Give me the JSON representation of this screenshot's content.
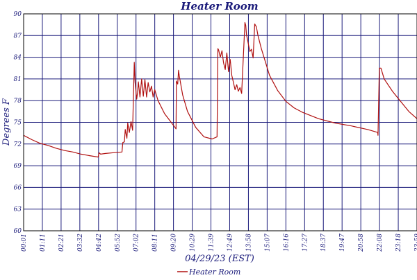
{
  "colors": {
    "frame": "#000000",
    "grid": "#1a1a7a",
    "text": "#1a1a7a",
    "series": "#b01010",
    "background": "#ffffff"
  },
  "chart_data": {
    "type": "line",
    "title": "Heater Room",
    "xlabel": "04/29/23 (EST)",
    "ylabel": "Degrees F",
    "ylim": [
      60,
      90
    ],
    "xlim": [
      0,
      24
    ],
    "grid": true,
    "legend_position": "bottom-center",
    "x_unit": "hours since 00:01",
    "x_tick_labels": [
      "00:01",
      "01:11",
      "02:21",
      "03:32",
      "04:42",
      "05:52",
      "07:02",
      "08:11",
      "09:20",
      "10:29",
      "11:39",
      "12:49",
      "13:58",
      "15:07",
      "16:16",
      "17:27",
      "18:37",
      "19:47",
      "20:58",
      "22:08",
      "23:18",
      "23:59"
    ],
    "y_tick_labels": [
      "60",
      "63",
      "66",
      "69",
      "72",
      "75",
      "78",
      "81",
      "84",
      "87",
      "90"
    ],
    "series": [
      {
        "name": "Heater Room",
        "x": [
          0.0,
          0.5,
          1.0,
          1.5,
          2.0,
          2.5,
          3.0,
          3.5,
          4.0,
          4.55,
          4.6,
          4.7,
          5.0,
          5.5,
          6.0,
          6.05,
          6.15,
          6.2,
          6.3,
          6.35,
          6.45,
          6.55,
          6.65,
          6.75,
          6.8,
          6.9,
          6.95,
          7.0,
          7.1,
          7.2,
          7.3,
          7.4,
          7.5,
          7.6,
          7.7,
          7.8,
          7.9,
          8.0,
          8.2,
          8.6,
          9.0,
          9.3,
          9.32,
          9.4,
          9.45,
          9.5,
          9.7,
          10.0,
          10.5,
          11.0,
          11.5,
          11.8,
          11.85,
          11.9,
          12.0,
          12.1,
          12.2,
          12.3,
          12.4,
          12.5,
          12.6,
          12.7,
          12.8,
          12.9,
          13.0,
          13.1,
          13.2,
          13.3,
          13.5,
          13.55,
          13.6,
          13.8,
          13.9,
          14.0,
          14.1,
          14.2,
          14.3,
          14.5,
          15.0,
          15.5,
          16.0,
          16.5,
          17.0,
          18.0,
          19.0,
          20.0,
          21.0,
          21.6,
          21.62,
          21.7,
          21.8,
          22.0,
          22.5,
          23.0,
          23.5,
          24.0
        ],
        "y": [
          73.2,
          72.6,
          72.1,
          71.8,
          71.4,
          71.1,
          70.9,
          70.6,
          70.4,
          70.2,
          70.8,
          70.6,
          70.7,
          70.8,
          70.9,
          72.2,
          72.3,
          74.0,
          72.8,
          74.9,
          73.6,
          75.1,
          73.9,
          83.3,
          80.5,
          78.2,
          79.1,
          80.6,
          78.5,
          81.0,
          78.6,
          80.9,
          78.5,
          80.5,
          79.2,
          80.0,
          78.5,
          79.5,
          78.0,
          76.2,
          75.0,
          74.1,
          80.7,
          80.3,
          82.2,
          81.4,
          78.8,
          76.5,
          74.3,
          73.0,
          72.7,
          73.0,
          85.2,
          85.0,
          84.0,
          84.9,
          83.2,
          82.3,
          84.6,
          82.0,
          83.7,
          81.5,
          80.5,
          79.5,
          80.2,
          79.3,
          79.8,
          79.0,
          88.8,
          88.4,
          87.1,
          84.8,
          85.1,
          83.9,
          88.6,
          88.2,
          87.0,
          85.2,
          81.5,
          79.4,
          77.9,
          77.0,
          76.4,
          75.5,
          74.9,
          74.5,
          74.0,
          73.6,
          73.2,
          82.5,
          82.5,
          81.0,
          79.3,
          77.9,
          76.5,
          75.5
        ]
      }
    ]
  }
}
